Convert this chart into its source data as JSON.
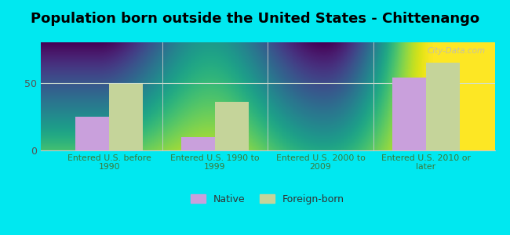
{
  "title": "Population born outside the United States - Chittenango",
  "categories": [
    "Entered U.S. before\n1990",
    "Entered U.S. 1990 to\n1999",
    "Entered U.S. 2000 to\n2009",
    "Entered U.S. 2010 or\nlater"
  ],
  "native_values": [
    25,
    10,
    0,
    54
  ],
  "foreign_values": [
    49,
    36,
    0,
    65
  ],
  "native_color": "#c9a0dc",
  "foreign_color": "#c5d49a",
  "background_outer": "#00e8f0",
  "ylim": [
    0,
    80
  ],
  "yticks": [
    0,
    50
  ],
  "bar_width": 0.32,
  "legend_labels": [
    "Native",
    "Foreign-born"
  ],
  "title_fontsize": 13,
  "watermark": "City-Data.com",
  "grid_color": "#e0e8e0",
  "xtick_color": "#3a7a3a",
  "bg_top": "#e8f5e0",
  "bg_bottom": "#f8fff8"
}
